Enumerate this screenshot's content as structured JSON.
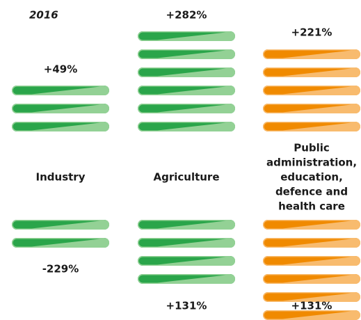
{
  "year": "2016",
  "columns": [
    {
      "name": [
        "Industry"
      ],
      "color": "#2aa54a",
      "light": "#93d195",
      "top": {
        "label": "+49%",
        "count": 3
      },
      "bottom": {
        "label": "-229%",
        "count": 2
      }
    },
    {
      "name": [
        "Agriculture"
      ],
      "color": "#2aa54a",
      "light": "#93d195",
      "top": {
        "label": "+282%",
        "count": 6
      },
      "bottom": {
        "label": "+131%",
        "count": 4
      }
    },
    {
      "name": [
        "Public",
        "administration,",
        "education,",
        "defence and",
        "health care"
      ],
      "color": "#f08a00",
      "light": "#f8bb6e",
      "top": {
        "label": "+221%",
        "count": 5
      },
      "bottom": {
        "label": "+131%",
        "count": 6
      }
    }
  ]
}
